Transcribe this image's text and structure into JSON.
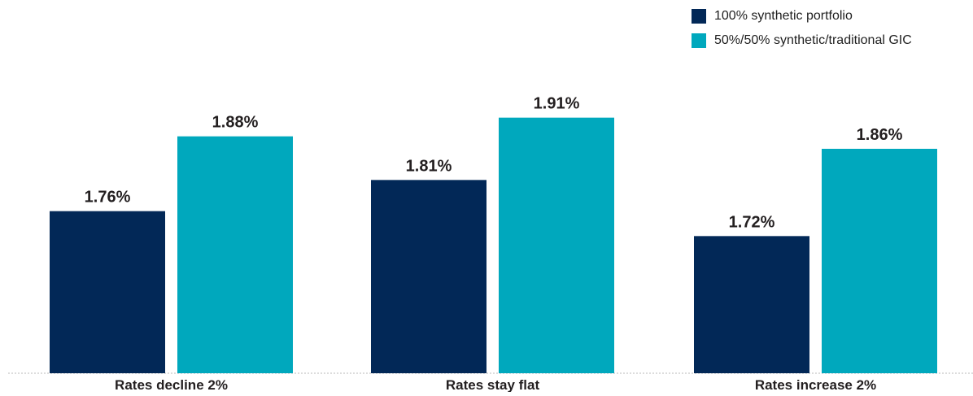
{
  "chart_data": {
    "type": "bar",
    "categories": [
      "Rates decline 2%",
      "Rates stay flat",
      "Rates increase 2%"
    ],
    "series": [
      {
        "name": "100% synthetic portfolio",
        "values": [
          1.76,
          1.81,
          1.72
        ],
        "labels": [
          "1.76%",
          "1.81%",
          "1.72%"
        ],
        "color": "#022857"
      },
      {
        "name": "50%/50% synthetic/traditional GIC",
        "values": [
          1.88,
          1.91,
          1.86
        ],
        "labels": [
          "1.88%",
          "1.91%",
          "1.86%"
        ],
        "color": "#00a8bd"
      }
    ],
    "ylim": [
      1.5,
      1.95
    ],
    "grid": false,
    "legend_position": "top-right",
    "axis_line_color": "#b9b9b9"
  }
}
